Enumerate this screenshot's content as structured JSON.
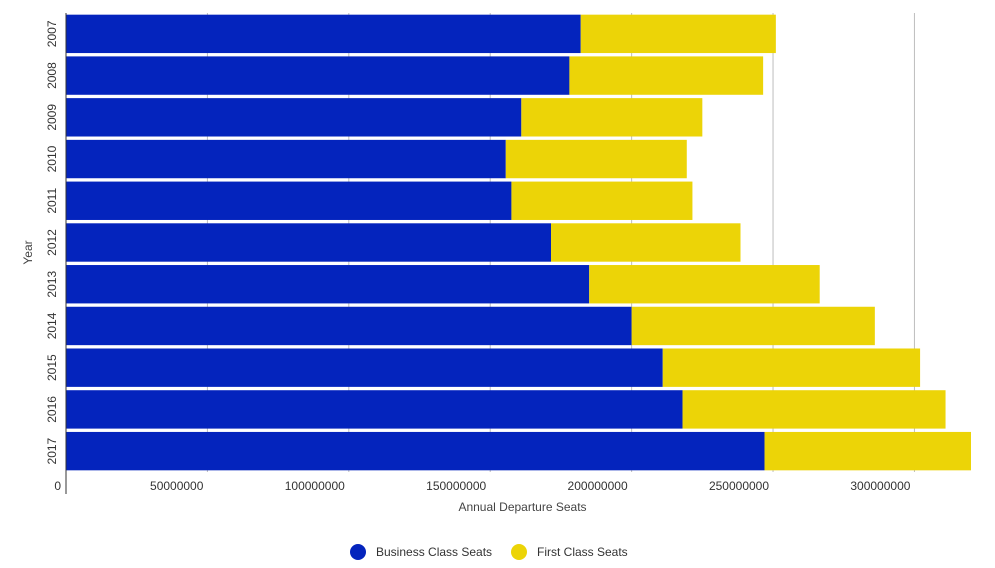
{
  "chart_data": {
    "type": "bar",
    "orientation": "horizontal",
    "stacked": true,
    "title": "",
    "xlabel": "Annual Departure Seats",
    "ylabel": "Year",
    "xlim": [
      0,
      320000000
    ],
    "x_ticks": [
      0,
      50000000,
      100000000,
      150000000,
      200000000,
      250000000,
      300000000
    ],
    "x_tick_labels": [
      "0",
      "50000000",
      "100000000",
      "150000000",
      "200000000",
      "250000000",
      "300000000"
    ],
    "grid": true,
    "legend_position": "bottom",
    "categories": [
      "2007",
      "2008",
      "2009",
      "2010",
      "2011",
      "2012",
      "2013",
      "2014",
      "2015",
      "2016",
      "2017"
    ],
    "series": [
      {
        "name": "Business Class Seats",
        "color": "#0424BD",
        "values": [
          182000000,
          178000000,
          161000000,
          155500000,
          157500000,
          171500000,
          185000000,
          200000000,
          211000000,
          218000000,
          247000000
        ]
      },
      {
        "name": "First Class Seats",
        "color": "#ECD407",
        "values": [
          69000000,
          68500000,
          64000000,
          64000000,
          64000000,
          67000000,
          81500000,
          86000000,
          91000000,
          93000000,
          73000000
        ]
      }
    ]
  }
}
